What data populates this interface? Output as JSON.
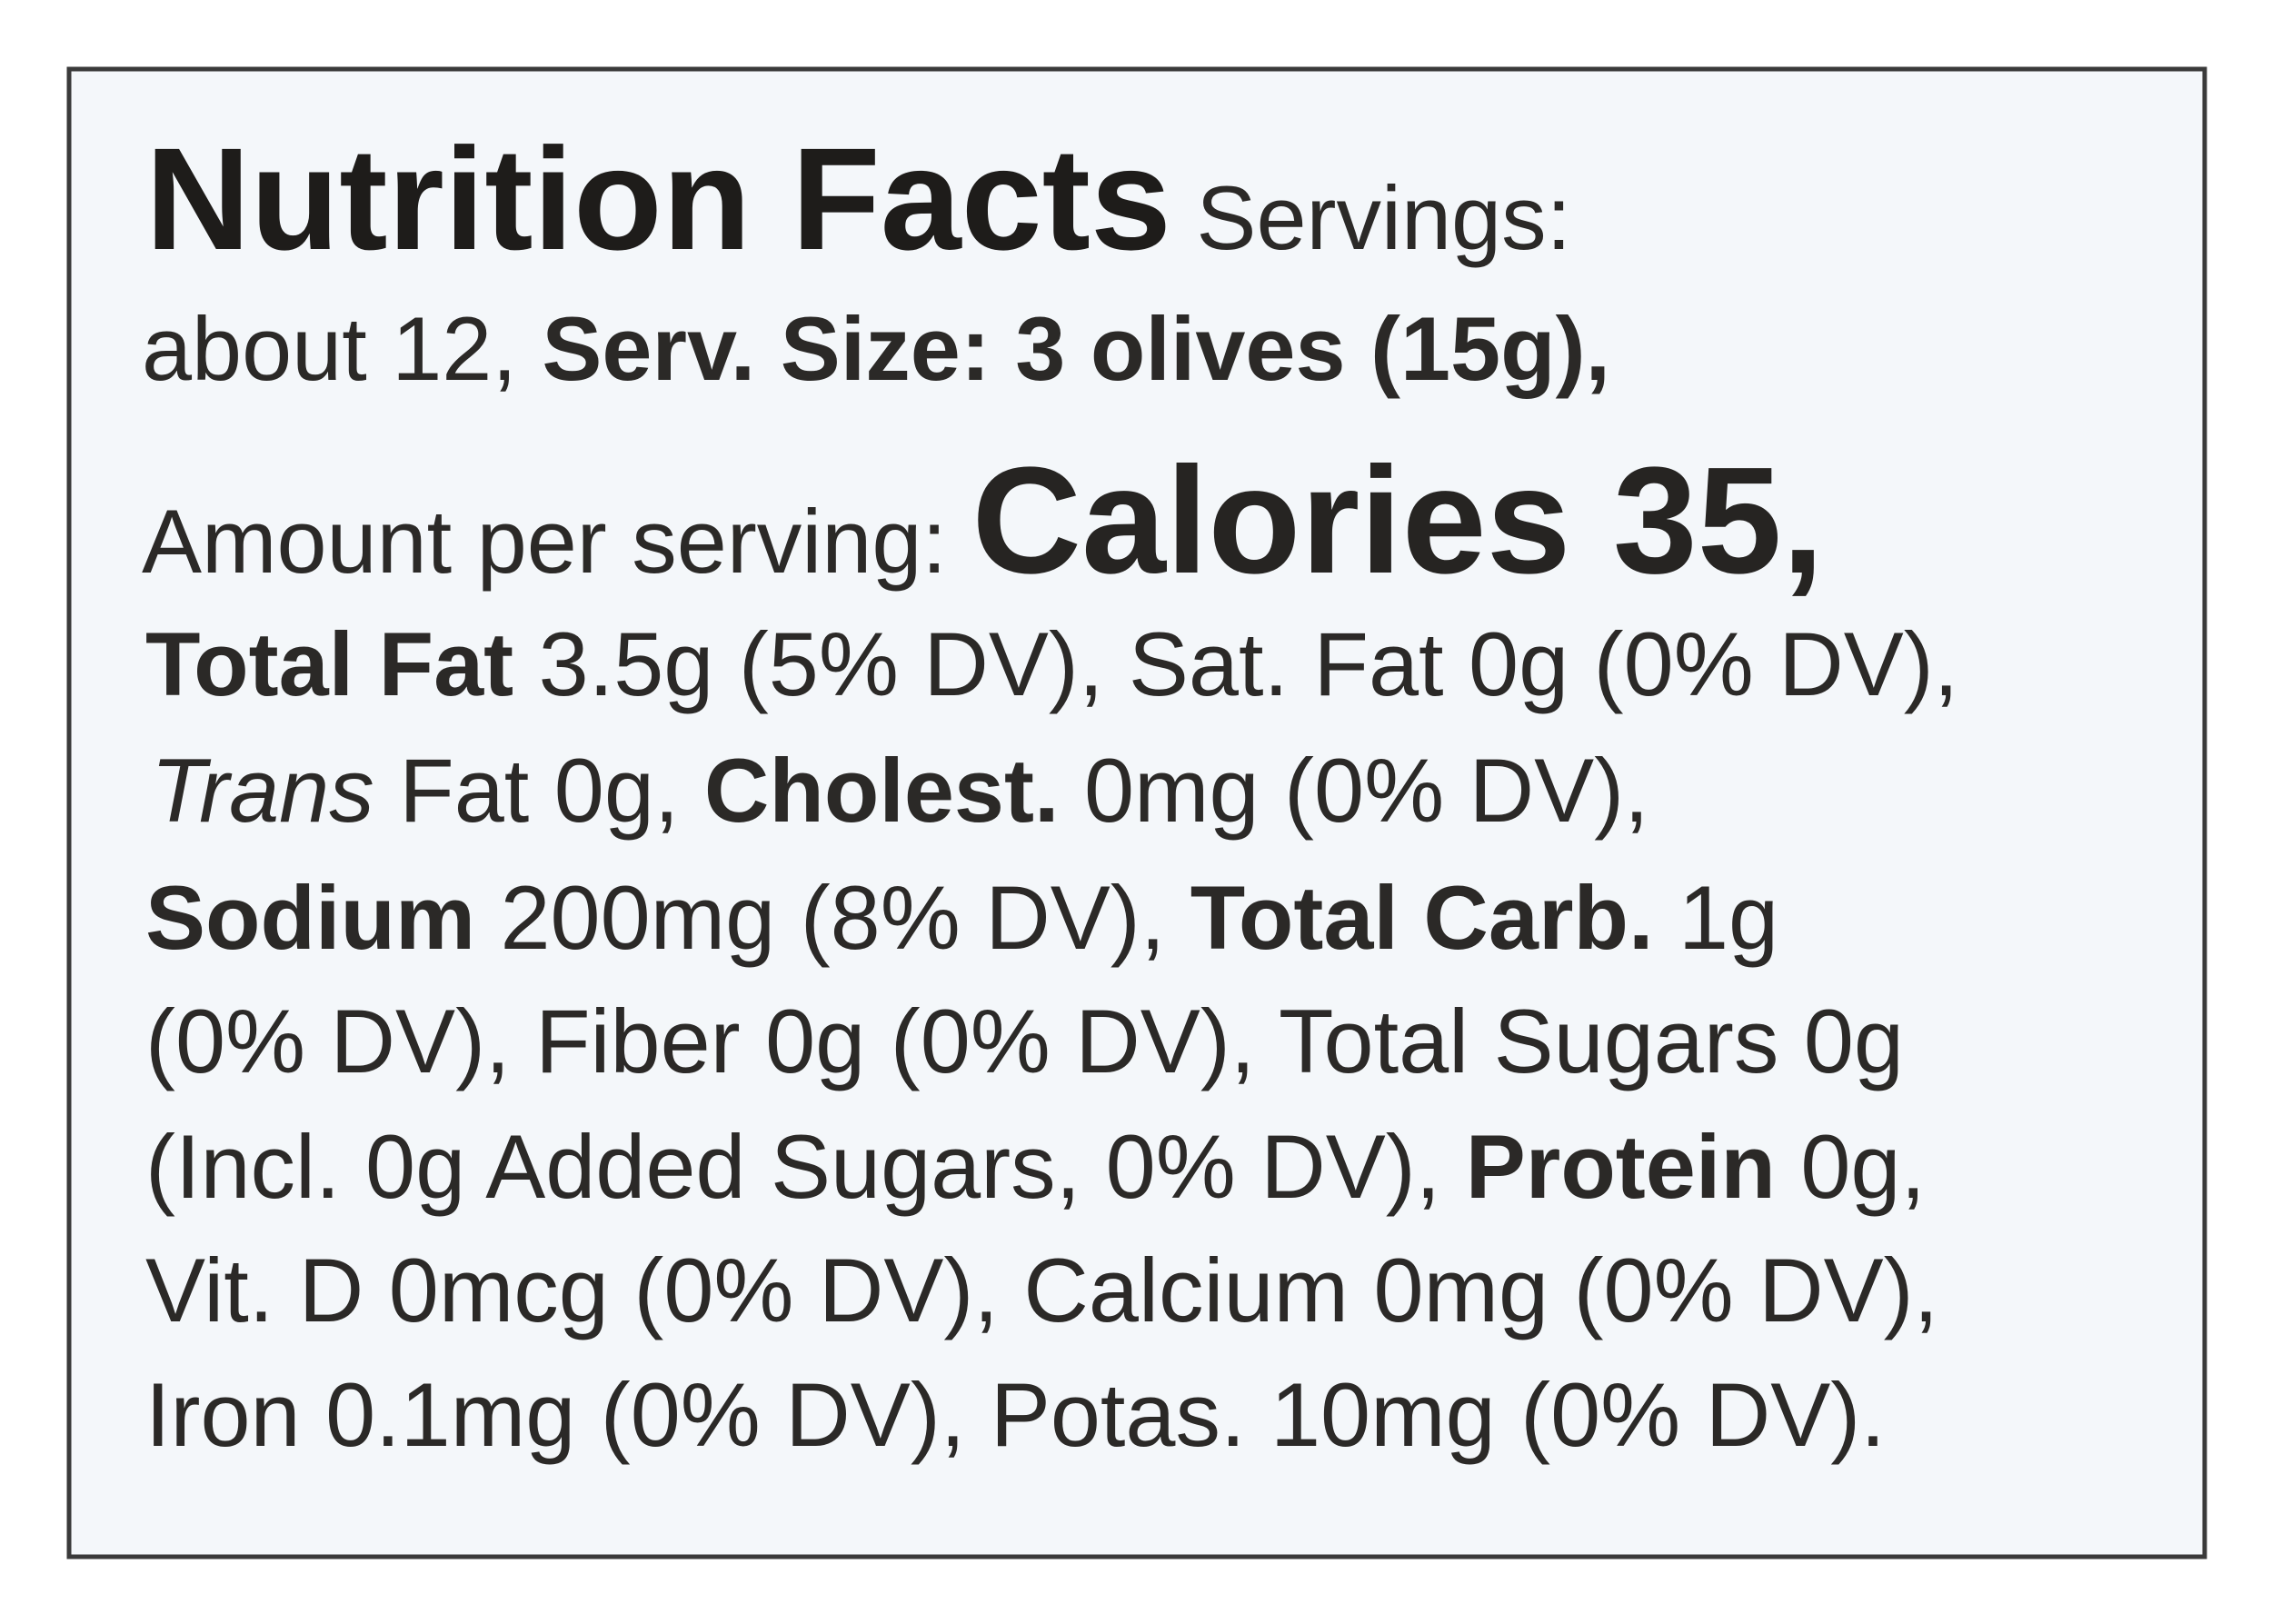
{
  "label": {
    "lines": [
      [
        "Nutrition Facts",
        " Servings:"
      ],
      [
        "about 12, ",
        "Serv. Size: 3 olives (15g),"
      ],
      [
        "Amount per serving: ",
        "Calories 35,"
      ],
      [
        "Total Fat",
        " 3.5g (5% DV), Sat. Fat 0g (0% DV),"
      ],
      [
        "Trans",
        " Fat 0g, ",
        "Cholest.",
        " 0mg (0% DV),"
      ],
      [
        "Sodium",
        " 200mg (8% DV), ",
        "Total Carb.",
        " 1g"
      ],
      [
        "(0% DV), Fiber 0g (0% DV), Total Sugars 0g"
      ],
      [
        "(Incl. 0g Added Sugars, 0% DV), ",
        "Protein",
        " 0g,"
      ],
      [
        "Vit. D 0mcg (0% DV), Calcium 0mg (0% DV),"
      ],
      [
        "Iron 0.1mg (0% DV), Potas. 10mg (0% DV)."
      ]
    ]
  }
}
